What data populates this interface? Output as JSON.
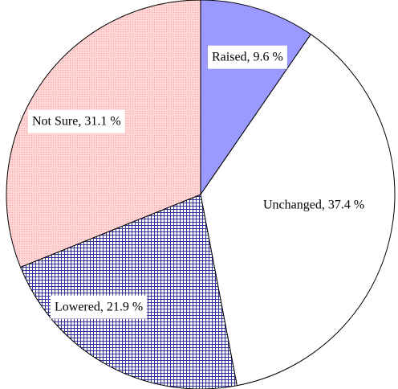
{
  "chart_data": {
    "type": "pie",
    "values": [
      9.6,
      37.4,
      21.9,
      31.1
    ],
    "value_labels": [
      "Raised, 9.6 %",
      "Unchanged, 37.4 %",
      "Lowered, 21.9 %",
      "Not Sure, 31.1 %"
    ],
    "colors": [
      "#9999ff",
      "#ffffff",
      "#333399",
      "#ff9999"
    ],
    "start_angle": 0,
    "direction": "clockwise"
  }
}
